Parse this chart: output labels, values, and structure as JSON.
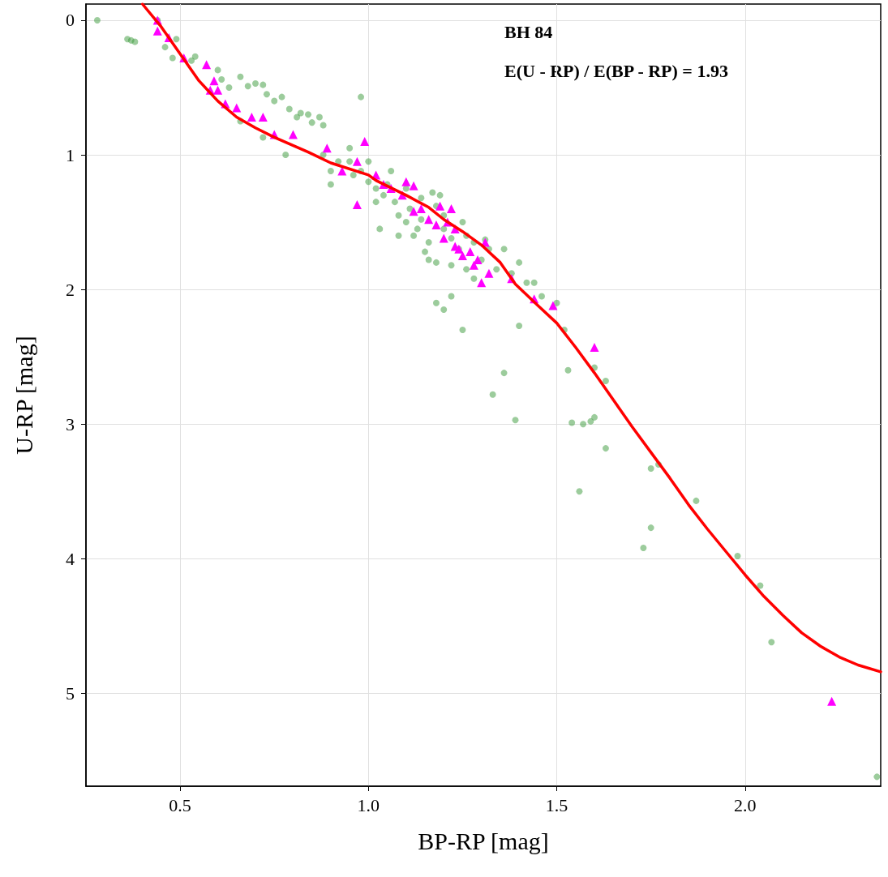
{
  "chart_data": {
    "type": "scatter",
    "xlabel": "BP-RP [mag]",
    "ylabel": "U-RP [mag]",
    "annotations": [
      "BH 84",
      "E(U - RP) / E(BP - RP) = 1.93"
    ],
    "xlim": [
      0.25,
      2.36
    ],
    "ylim": [
      5.69,
      -0.12
    ],
    "xticks": [
      0.5,
      {
        "value": 1,
        "label": "1.0"
      },
      1.5,
      {
        "value": 2,
        "label": "2.0"
      }
    ],
    "yticks": [
      0,
      1,
      2,
      3,
      4,
      5
    ],
    "grid": true,
    "series": [
      {
        "marker": "circle",
        "color": "#3a9a3a",
        "x": [
          0.28,
          0.36,
          0.37,
          0.38,
          0.44,
          0.46,
          0.49,
          0.48,
          0.53,
          0.54,
          0.6,
          0.61,
          0.63,
          0.66,
          0.68,
          0.7,
          0.72,
          0.73,
          0.75,
          0.77,
          0.79,
          0.81,
          0.82,
          0.84,
          0.85,
          0.87,
          0.88,
          0.66,
          0.72,
          0.78,
          0.88,
          0.9,
          0.92,
          0.98,
          0.9,
          0.95,
          0.96,
          1.0,
          1.02,
          1.04,
          1.05,
          1.07,
          1.08,
          1.03,
          1.1,
          1.12,
          1.14,
          1.15,
          1.16,
          1.18,
          1.2,
          1.22,
          1.24,
          1.25,
          1.26,
          1.28,
          1.3,
          1.32,
          1.34,
          1.36,
          1.38,
          1.4,
          1.42,
          1.44,
          1.46,
          1.5,
          1.52,
          1.18,
          1.22,
          1.25,
          1.2,
          1.36,
          1.33,
          1.4,
          1.39,
          1.53,
          1.54,
          1.57,
          1.59,
          1.6,
          1.6,
          1.63,
          1.63,
          1.56,
          1.75,
          1.77,
          1.87,
          1.75,
          1.73,
          1.98,
          2.04,
          2.07,
          2.35,
          0.95,
          1.0,
          1.06,
          0.98,
          1.1,
          1.14,
          1.18,
          1.2,
          1.26,
          1.28,
          1.11,
          1.08,
          1.13,
          1.02,
          1.16,
          1.22,
          1.17,
          1.19,
          1.31
        ],
        "values": [
          0.0,
          0.14,
          0.15,
          0.16,
          0.0,
          0.2,
          0.14,
          0.28,
          0.3,
          0.27,
          0.37,
          0.44,
          0.5,
          0.42,
          0.49,
          0.47,
          0.48,
          0.55,
          0.6,
          0.57,
          0.66,
          0.72,
          0.69,
          0.7,
          0.76,
          0.72,
          0.78,
          0.75,
          0.87,
          1.0,
          1.0,
          1.12,
          1.05,
          0.57,
          1.22,
          1.05,
          1.15,
          1.2,
          1.25,
          1.3,
          1.22,
          1.35,
          1.45,
          1.55,
          1.5,
          1.6,
          1.48,
          1.72,
          1.65,
          1.8,
          1.55,
          1.62,
          1.7,
          1.5,
          1.85,
          1.92,
          1.78,
          1.7,
          1.85,
          1.7,
          1.88,
          1.8,
          1.95,
          1.95,
          2.05,
          2.1,
          2.3,
          2.1,
          2.05,
          2.3,
          2.15,
          2.62,
          2.78,
          2.27,
          2.97,
          2.6,
          2.99,
          3.0,
          2.98,
          2.95,
          2.58,
          2.68,
          3.18,
          3.5,
          3.33,
          3.3,
          3.57,
          3.77,
          3.92,
          3.98,
          4.2,
          4.62,
          5.62,
          0.95,
          1.05,
          1.12,
          1.12,
          1.25,
          1.32,
          1.38,
          1.45,
          1.6,
          1.65,
          1.4,
          1.6,
          1.55,
          1.35,
          1.78,
          1.82,
          1.28,
          1.3,
          1.63
        ]
      },
      {
        "marker": "triangle",
        "color": "#ff00ff",
        "x": [
          0.44,
          0.44,
          0.47,
          0.51,
          0.57,
          0.59,
          0.58,
          0.6,
          0.62,
          0.65,
          0.69,
          0.72,
          0.75,
          0.8,
          0.89,
          0.99,
          0.97,
          0.93,
          1.02,
          1.04,
          1.06,
          1.09,
          1.1,
          1.12,
          0.97,
          1.12,
          1.14,
          1.16,
          1.18,
          1.19,
          1.21,
          1.22,
          1.23,
          1.24,
          1.25,
          1.23,
          1.27,
          1.29,
          1.31,
          1.32,
          1.3,
          1.38,
          1.44,
          1.49,
          1.6,
          2.23,
          1.2,
          1.28
        ],
        "values": [
          0.0,
          0.08,
          0.13,
          0.28,
          0.33,
          0.45,
          0.52,
          0.52,
          0.62,
          0.65,
          0.72,
          0.72,
          0.85,
          0.85,
          0.95,
          0.9,
          1.05,
          1.12,
          1.15,
          1.22,
          1.25,
          1.3,
          1.2,
          1.23,
          1.37,
          1.42,
          1.4,
          1.48,
          1.52,
          1.38,
          1.5,
          1.4,
          1.55,
          1.7,
          1.75,
          1.68,
          1.72,
          1.78,
          1.65,
          1.88,
          1.95,
          1.92,
          2.07,
          2.12,
          2.43,
          5.06,
          1.62,
          1.82
        ]
      },
      {
        "type": "line",
        "marker": "none",
        "line_style": "solid",
        "color": "#ff0000",
        "x": [
          0.4,
          0.45,
          0.5,
          0.55,
          0.6,
          0.65,
          0.7,
          0.75,
          0.84,
          0.9,
          1.0,
          1.02,
          1.1,
          1.16,
          1.2,
          1.25,
          1.3,
          1.35,
          1.39,
          1.45,
          1.5,
          1.55,
          1.6,
          1.65,
          1.7,
          1.75,
          1.8,
          1.85,
          1.9,
          1.95,
          2.0,
          2.05,
          2.1,
          2.15,
          2.2,
          2.25,
          2.3,
          2.36
        ],
        "values": [
          -0.12,
          0.05,
          0.25,
          0.45,
          0.6,
          0.72,
          0.8,
          0.87,
          0.98,
          1.06,
          1.15,
          1.19,
          1.3,
          1.39,
          1.48,
          1.57,
          1.67,
          1.8,
          1.96,
          2.12,
          2.25,
          2.43,
          2.62,
          2.82,
          3.02,
          3.21,
          3.4,
          3.6,
          3.78,
          3.95,
          4.12,
          4.28,
          4.42,
          4.55,
          4.65,
          4.73,
          4.79,
          4.84
        ]
      }
    ]
  }
}
